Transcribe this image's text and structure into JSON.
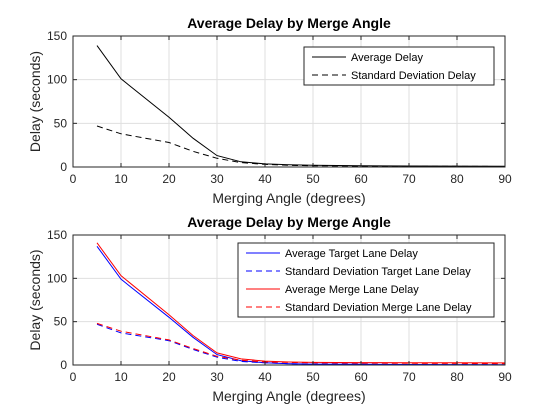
{
  "chart_data": [
    {
      "type": "line",
      "title": "Average Delay by Merge Angle",
      "xlabel": "Merging Angle (degrees)",
      "ylabel": "Delay (seconds)",
      "xlim": [
        0,
        90
      ],
      "ylim": [
        0,
        150
      ],
      "xticks": [
        0,
        10,
        20,
        30,
        40,
        50,
        60,
        70,
        80,
        90
      ],
      "yticks": [
        0,
        50,
        100,
        150
      ],
      "grid": true,
      "legend_position": "top-right",
      "x": [
        5,
        10,
        20,
        25,
        30,
        35,
        40,
        45,
        50,
        60,
        70,
        80,
        90
      ],
      "series": [
        {
          "name": "Average Delay",
          "color": "#000000",
          "dash": "solid",
          "values": [
            139,
            101,
            57,
            33,
            13,
            6,
            3.5,
            2.5,
            2,
            1.5,
            1.2,
            1,
            0.8
          ]
        },
        {
          "name": "Standard Deviation Delay",
          "color": "#000000",
          "dash": "dashed",
          "values": [
            47,
            38,
            28,
            18,
            10,
            5,
            3,
            2,
            1.5,
            1.2,
            1,
            0.8,
            0.6
          ]
        }
      ]
    },
    {
      "type": "line",
      "title": "Average Delay by Merge Angle",
      "xlabel": "Merging Angle (degrees)",
      "ylabel": "Delay (seconds)",
      "xlim": [
        0,
        90
      ],
      "ylim": [
        0,
        150
      ],
      "xticks": [
        0,
        10,
        20,
        30,
        40,
        50,
        60,
        70,
        80,
        90
      ],
      "yticks": [
        0,
        50,
        100,
        150
      ],
      "grid": true,
      "legend_position": "top-right",
      "x": [
        5,
        10,
        20,
        25,
        30,
        35,
        40,
        45,
        50,
        60,
        70,
        80,
        90
      ],
      "series": [
        {
          "name": "Average Target Lane Delay",
          "color": "#0000ff",
          "dash": "solid",
          "values": [
            137,
            99,
            55,
            32,
            12,
            5,
            2.5,
            1.5,
            1,
            0.8,
            0.6,
            0.5,
            0.4
          ]
        },
        {
          "name": "Standard Deviation Target Lane Delay",
          "color": "#0000ff",
          "dash": "dashed",
          "values": [
            47,
            37,
            28,
            18,
            9,
            4,
            2.5,
            1.5,
            1,
            0.8,
            0.6,
            0.5,
            0.4
          ]
        },
        {
          "name": "Average Merge Lane Delay",
          "color": "#ff0000",
          "dash": "solid",
          "values": [
            141,
            103,
            58,
            34,
            14,
            7,
            4.5,
            3.5,
            3,
            2.8,
            2.6,
            2.5,
            2.4
          ]
        },
        {
          "name": "Standard Deviation Merge Lane Delay",
          "color": "#ff0000",
          "dash": "dashed",
          "values": [
            48,
            39,
            29,
            19,
            10,
            5.5,
            3.5,
            3,
            2.5,
            2.2,
            2,
            1.8,
            1.6
          ]
        }
      ]
    }
  ]
}
